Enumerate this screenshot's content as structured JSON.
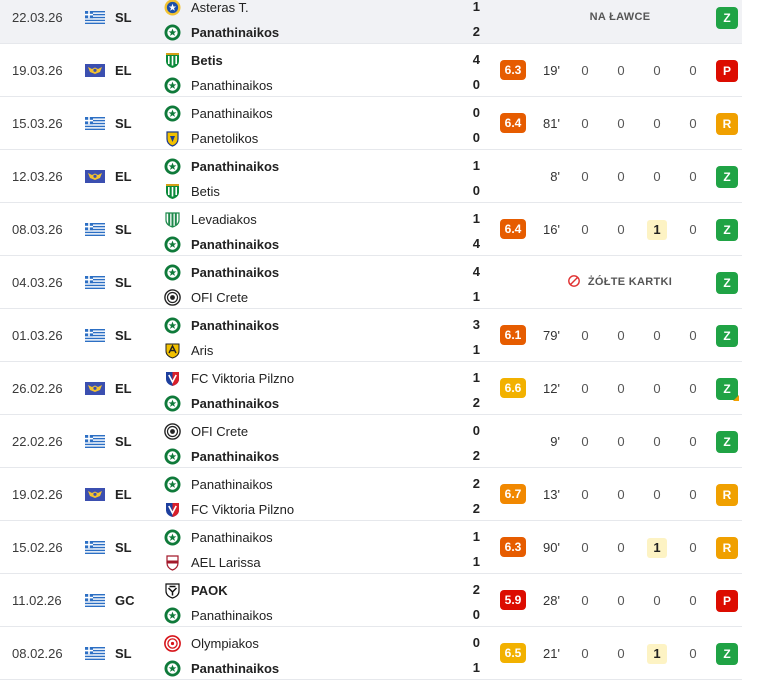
{
  "colors": {
    "rating_dark_orange": "#e65c00",
    "rating_orange": "#f18800",
    "rating_light_orange": "#f2b100",
    "rating_red": "#dc0c00",
    "win": "#20a345",
    "loss": "#dc0c00",
    "draw": "#f0a000"
  },
  "matches": [
    {
      "date": "22.03.26",
      "flag": "greece-flag-icon",
      "comp": "SL",
      "home": "Asteras T.",
      "home_crest": "asteras-crest-icon",
      "home_bold": false,
      "away": "Panathinaikos",
      "away_crest": "panathinaikos-crest-icon",
      "away_bold": true,
      "home_score": "1",
      "away_score": "2",
      "status_text": "NA ŁAWCE",
      "result": "Z",
      "result_type": "w",
      "highlight": true
    },
    {
      "date": "19.03.26",
      "flag": "europa-league-flag-icon",
      "comp": "EL",
      "home": "Betis",
      "home_crest": "betis-crest-icon",
      "home_bold": true,
      "away": "Panathinaikos",
      "away_crest": "panathinaikos-crest-icon",
      "away_bold": false,
      "home_score": "4",
      "away_score": "0",
      "rating": "6.3",
      "rating_color": "#e65c00",
      "minutes": "19'",
      "stats": [
        "0",
        "0",
        "0",
        "0"
      ],
      "result": "P",
      "result_type": "l"
    },
    {
      "date": "15.03.26",
      "flag": "greece-flag-icon",
      "comp": "SL",
      "home": "Panathinaikos",
      "home_crest": "panathinaikos-crest-icon",
      "home_bold": false,
      "away": "Panetolikos",
      "away_crest": "panetolikos-crest-icon",
      "away_bold": false,
      "home_score": "0",
      "away_score": "0",
      "rating": "6.4",
      "rating_color": "#e65c00",
      "minutes": "81'",
      "stats": [
        "0",
        "0",
        "0",
        "0"
      ],
      "result": "R",
      "result_type": "d"
    },
    {
      "date": "12.03.26",
      "flag": "europa-league-flag-icon",
      "comp": "EL",
      "home": "Panathinaikos",
      "home_crest": "panathinaikos-crest-icon",
      "home_bold": true,
      "away": "Betis",
      "away_crest": "betis-crest-icon",
      "away_bold": false,
      "home_score": "1",
      "away_score": "0",
      "minutes": "8'",
      "stats": [
        "0",
        "0",
        "0",
        "0"
      ],
      "result": "Z",
      "result_type": "w"
    },
    {
      "date": "08.03.26",
      "flag": "greece-flag-icon",
      "comp": "SL",
      "home": "Levadiakos",
      "home_crest": "levadiakos-crest-icon",
      "home_bold": false,
      "away": "Panathinaikos",
      "away_crest": "panathinaikos-crest-icon",
      "away_bold": true,
      "home_score": "1",
      "away_score": "4",
      "rating": "6.4",
      "rating_color": "#e65c00",
      "minutes": "16'",
      "stats": [
        "0",
        "0",
        "1",
        "0"
      ],
      "yellow": true,
      "result": "Z",
      "result_type": "w"
    },
    {
      "date": "04.03.26",
      "flag": "greece-flag-icon",
      "comp": "SL",
      "home": "Panathinaikos",
      "home_crest": "panathinaikos-crest-icon",
      "home_bold": true,
      "away": "OFI Crete",
      "away_crest": "ofi-crete-crest-icon",
      "away_bold": false,
      "home_score": "4",
      "away_score": "1",
      "status_text": "ŻÓŁTE KARTKI",
      "status_icon": true,
      "result": "Z",
      "result_type": "w"
    },
    {
      "date": "01.03.26",
      "flag": "greece-flag-icon",
      "comp": "SL",
      "home": "Panathinaikos",
      "home_crest": "panathinaikos-crest-icon",
      "home_bold": true,
      "away": "Aris",
      "away_crest": "aris-crest-icon",
      "away_bold": false,
      "home_score": "3",
      "away_score": "1",
      "rating": "6.1",
      "rating_color": "#e65c00",
      "minutes": "79'",
      "stats": [
        "0",
        "0",
        "0",
        "0"
      ],
      "result": "Z",
      "result_type": "w"
    },
    {
      "date": "26.02.26",
      "flag": "europa-league-flag-icon",
      "comp": "EL",
      "home": "FC Viktoria Pilzno",
      "home_crest": "viktoria-pilzno-crest-icon",
      "home_bold": false,
      "away": "Panathinaikos",
      "away_crest": "panathinaikos-crest-icon",
      "away_bold": true,
      "home_score": "1",
      "away_score": "2",
      "rating": "6.6",
      "rating_color": "#f2b100",
      "minutes": "12'",
      "stats": [
        "0",
        "0",
        "0",
        "0"
      ],
      "result": "Z",
      "result_type": "w",
      "corner": true
    },
    {
      "date": "22.02.26",
      "flag": "greece-flag-icon",
      "comp": "SL",
      "home": "OFI Crete",
      "home_crest": "ofi-crete-crest-icon",
      "home_bold": false,
      "away": "Panathinaikos",
      "away_crest": "panathinaikos-crest-icon",
      "away_bold": true,
      "home_score": "0",
      "away_score": "2",
      "minutes": "9'",
      "stats": [
        "0",
        "0",
        "0",
        "0"
      ],
      "result": "Z",
      "result_type": "w"
    },
    {
      "date": "19.02.26",
      "flag": "europa-league-flag-icon",
      "comp": "EL",
      "home": "Panathinaikos",
      "home_crest": "panathinaikos-crest-icon",
      "home_bold": false,
      "away": "FC Viktoria Pilzno",
      "away_crest": "viktoria-pilzno-crest-icon",
      "away_bold": false,
      "home_score": "2",
      "away_score": "2",
      "rating": "6.7",
      "rating_color": "#f18800",
      "minutes": "13'",
      "stats": [
        "0",
        "0",
        "0",
        "0"
      ],
      "result": "R",
      "result_type": "d"
    },
    {
      "date": "15.02.26",
      "flag": "greece-flag-icon",
      "comp": "SL",
      "home": "Panathinaikos",
      "home_crest": "panathinaikos-crest-icon",
      "home_bold": false,
      "away": "AEL Larissa",
      "away_crest": "ael-larissa-crest-icon",
      "away_bold": false,
      "home_score": "1",
      "away_score": "1",
      "rating": "6.3",
      "rating_color": "#e65c00",
      "minutes": "90'",
      "stats": [
        "0",
        "0",
        "1",
        "0"
      ],
      "yellow": true,
      "result": "R",
      "result_type": "d"
    },
    {
      "date": "11.02.26",
      "flag": "greece-flag-icon",
      "comp": "GC",
      "home": "PAOK",
      "home_crest": "paok-crest-icon",
      "home_bold": true,
      "away": "Panathinaikos",
      "away_crest": "panathinaikos-crest-icon",
      "away_bold": false,
      "home_score": "2",
      "away_score": "0",
      "rating": "5.9",
      "rating_color": "#dc0c00",
      "minutes": "28'",
      "stats": [
        "0",
        "0",
        "0",
        "0"
      ],
      "result": "P",
      "result_type": "l"
    },
    {
      "date": "08.02.26",
      "flag": "greece-flag-icon",
      "comp": "SL",
      "home": "Olympiakos",
      "home_crest": "olympiakos-crest-icon",
      "home_bold": false,
      "away": "Panathinaikos",
      "away_crest": "panathinaikos-crest-icon",
      "away_bold": true,
      "home_score": "0",
      "away_score": "1",
      "rating": "6.5",
      "rating_color": "#f2b100",
      "minutes": "21'",
      "stats": [
        "0",
        "0",
        "1",
        "0"
      ],
      "yellow": true,
      "result": "Z",
      "result_type": "w"
    }
  ]
}
